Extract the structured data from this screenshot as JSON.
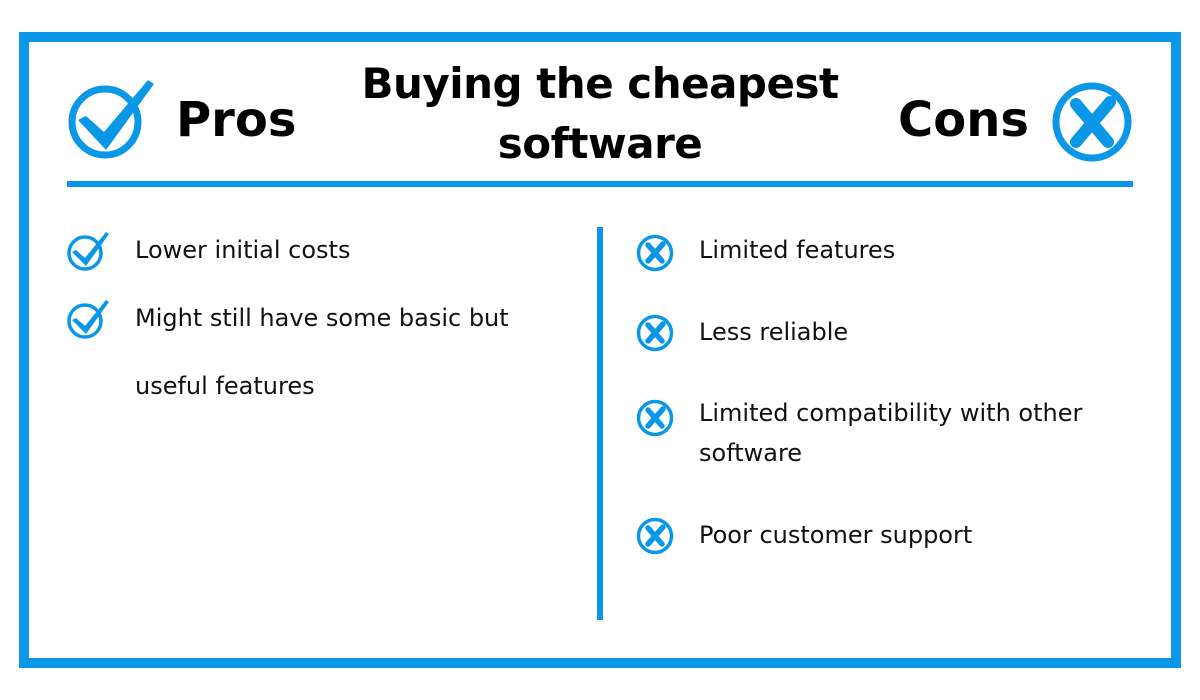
{
  "title": "Buying the cheapest software",
  "pros": {
    "heading": "Pros",
    "icon": "check-circle-icon",
    "items": [
      {
        "text": "Lower initial costs"
      },
      {
        "text": "Might still have some basic but useful features"
      }
    ]
  },
  "cons": {
    "heading": "Cons",
    "icon": "x-circle-icon",
    "items": [
      {
        "text": "Limited features"
      },
      {
        "text": "Less reliable"
      },
      {
        "text": "Limited compatibility with other software"
      },
      {
        "text": "Poor customer support"
      }
    ]
  },
  "colors": {
    "accent": "#0b97e8",
    "text": "#111111"
  }
}
